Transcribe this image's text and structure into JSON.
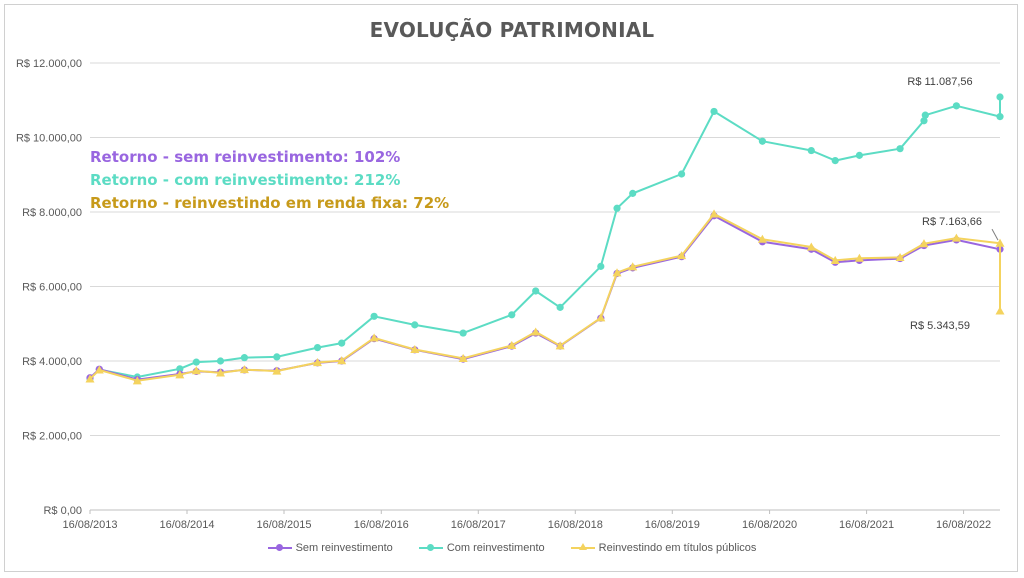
{
  "chart_data": {
    "type": "line",
    "title": "EVOLUÇÃO PATRIMONIAL",
    "xlabel": "",
    "ylabel": "",
    "ylim": [
      0,
      12000
    ],
    "y_ticks": [
      "R$ 0,00",
      "R$ 2.000,00",
      "R$ 4.000,00",
      "R$ 6.000,00",
      "R$ 8.000,00",
      "R$ 10.000,00",
      "R$ 12.000,00"
    ],
    "x_range": [
      "2013-08-16",
      "2022-12-31"
    ],
    "x_ticks": [
      "16/08/2013",
      "16/08/2014",
      "16/08/2015",
      "16/08/2016",
      "16/08/2017",
      "16/08/2018",
      "16/08/2019",
      "16/08/2020",
      "16/08/2021",
      "16/08/2022"
    ],
    "grid": "horizontal",
    "legend_position": "bottom",
    "series": [
      {
        "name": "Sem reinvestimento",
        "color": "#9966e0",
        "marker": "circle",
        "points": [
          [
            "2013-08-16",
            3550
          ],
          [
            "2013-09-20",
            3780
          ],
          [
            "2014-02-10",
            3500
          ],
          [
            "2014-07-20",
            3650
          ],
          [
            "2014-09-20",
            3720
          ],
          [
            "2014-12-20",
            3700
          ],
          [
            "2015-03-20",
            3760
          ],
          [
            "2015-07-20",
            3740
          ],
          [
            "2015-12-20",
            3950
          ],
          [
            "2016-03-20",
            4000
          ],
          [
            "2016-07-20",
            4600
          ],
          [
            "2016-12-20",
            4300
          ],
          [
            "2017-06-20",
            4050
          ],
          [
            "2017-12-20",
            4400
          ],
          [
            "2018-03-20",
            4750
          ],
          [
            "2018-06-20",
            4400
          ],
          [
            "2018-11-20",
            5150
          ],
          [
            "2019-01-20",
            6350
          ],
          [
            "2019-03-20",
            6500
          ],
          [
            "2019-09-20",
            6800
          ],
          [
            "2020-01-20",
            7900
          ],
          [
            "2020-07-20",
            7200
          ],
          [
            "2021-01-20",
            7000
          ],
          [
            "2021-04-20",
            6650
          ],
          [
            "2021-07-20",
            6700
          ],
          [
            "2021-12-20",
            6750
          ],
          [
            "2022-03-20",
            7100
          ],
          [
            "2022-07-20",
            7250
          ],
          [
            "2022-12-31",
            7000
          ]
        ]
      },
      {
        "name": "Com reinvestimento",
        "color": "#5cdcc4",
        "marker": "circle",
        "points": [
          [
            "2013-08-16",
            3530
          ],
          [
            "2013-09-20",
            3770
          ],
          [
            "2014-02-10",
            3570
          ],
          [
            "2014-07-20",
            3790
          ],
          [
            "2014-09-20",
            3970
          ],
          [
            "2014-12-20",
            4000
          ],
          [
            "2015-03-20",
            4090
          ],
          [
            "2015-07-20",
            4110
          ],
          [
            "2015-12-20",
            4360
          ],
          [
            "2016-03-20",
            4480
          ],
          [
            "2016-07-20",
            5200
          ],
          [
            "2016-12-20",
            4970
          ],
          [
            "2017-06-20",
            4750
          ],
          [
            "2017-12-20",
            5240
          ],
          [
            "2018-03-20",
            5880
          ],
          [
            "2018-06-20",
            5440
          ],
          [
            "2018-11-20",
            6540
          ],
          [
            "2019-01-20",
            8100
          ],
          [
            "2019-03-20",
            8500
          ],
          [
            "2019-09-20",
            9020
          ],
          [
            "2020-01-20",
            10700
          ],
          [
            "2020-07-20",
            9900
          ],
          [
            "2021-01-20",
            9650
          ],
          [
            "2021-04-20",
            9380
          ],
          [
            "2021-07-20",
            9520
          ],
          [
            "2021-12-20",
            9700
          ],
          [
            "2022-03-20",
            10450
          ],
          [
            "2022-03-25",
            10600
          ],
          [
            "2022-07-20",
            10850
          ],
          [
            "2022-12-31",
            10560
          ],
          [
            "2022-12-31",
            11087.56
          ]
        ]
      },
      {
        "name": "Reinvestindo em títulos públicos",
        "color": "#f4d35e",
        "marker": "triangle",
        "points": [
          [
            "2013-08-16",
            3520
          ],
          [
            "2013-09-20",
            3760
          ],
          [
            "2014-02-10",
            3470
          ],
          [
            "2014-07-20",
            3630
          ],
          [
            "2014-09-20",
            3740
          ],
          [
            "2014-12-20",
            3680
          ],
          [
            "2015-03-20",
            3770
          ],
          [
            "2015-07-20",
            3730
          ],
          [
            "2015-12-20",
            3960
          ],
          [
            "2016-03-20",
            4010
          ],
          [
            "2016-07-20",
            4620
          ],
          [
            "2016-12-20",
            4310
          ],
          [
            "2017-06-20",
            4070
          ],
          [
            "2017-12-20",
            4420
          ],
          [
            "2018-03-20",
            4780
          ],
          [
            "2018-06-20",
            4410
          ],
          [
            "2018-11-20",
            5160
          ],
          [
            "2019-01-20",
            6370
          ],
          [
            "2019-03-20",
            6530
          ],
          [
            "2019-09-20",
            6830
          ],
          [
            "2020-01-20",
            7950
          ],
          [
            "2020-07-20",
            7270
          ],
          [
            "2021-01-20",
            7060
          ],
          [
            "2021-04-20",
            6700
          ],
          [
            "2021-07-20",
            6760
          ],
          [
            "2021-12-20",
            6780
          ],
          [
            "2022-03-20",
            7150
          ],
          [
            "2022-07-20",
            7300
          ],
          [
            "2022-12-31",
            7163.66
          ],
          [
            "2022-12-31",
            5343.59
          ]
        ]
      }
    ],
    "data_labels": [
      {
        "text": "R$ 11.087,56",
        "series": 1,
        "point": 30,
        "position": "above"
      },
      {
        "text": "R$ 7.163,66",
        "series": 2,
        "point": 28,
        "position": "above"
      },
      {
        "text": "R$ 5.343,59",
        "series": 2,
        "point": 29,
        "position": "below"
      }
    ],
    "annotations": [
      {
        "text": "Retorno - sem reinvestimento: 102%",
        "color": "#9966e0"
      },
      {
        "text": "Retorno - com reinvestimento: 212%",
        "color": "#5cdcc4"
      },
      {
        "text": "Retorno - reinvestindo em renda fixa: 72%",
        "color": "#c79a1a"
      }
    ]
  },
  "style": {
    "grid_color": "#d9d9d9",
    "axis_text_color": "#595959",
    "label_color": "#404040"
  }
}
